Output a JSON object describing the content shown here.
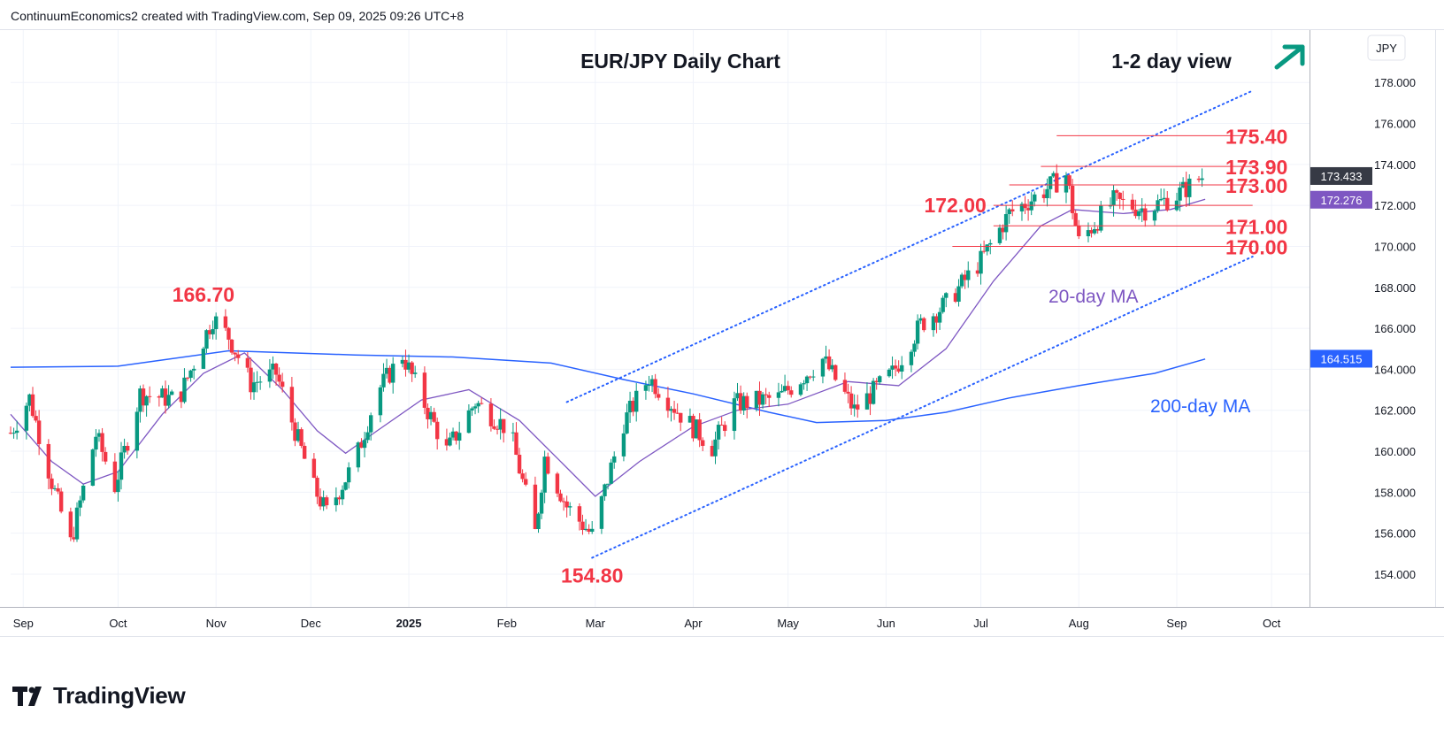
{
  "header": {
    "credit": "ContinuumEconomics2 created with TradingView.com, Sep 09, 2025 09:26 UTC+8"
  },
  "footer": {
    "brand": "TradingView"
  },
  "colors": {
    "up": "#089981",
    "down": "#f23645",
    "ma20": "#7e57c2",
    "ma200": "#2962ff",
    "level": "#f23645",
    "arrow": "#089981",
    "channel": "#2962ff",
    "price_badge": "#363a45",
    "ma20_badge": "#7e57c2",
    "ma200_badge": "#2962ff"
  },
  "chart_data": {
    "type": "candlestick",
    "title": "EUR/JPY Daily Chart",
    "view_label": "1-2 day view",
    "currency": "JPY",
    "x_ticks": [
      "Sep",
      "Oct",
      "Nov",
      "Dec",
      "2025",
      "Feb",
      "Mar",
      "Apr",
      "May",
      "Jun",
      "Jul",
      "Aug",
      "Sep",
      "Oct"
    ],
    "y_ticks": [
      "154.000",
      "156.000",
      "158.000",
      "160.000",
      "162.000",
      "164.000",
      "166.000",
      "168.000",
      "170.000",
      "172.000",
      "174.000",
      "176.000",
      "178.000"
    ],
    "ylim": [
      152.4,
      180.6
    ],
    "grid": true,
    "last_price": "173.433",
    "ma20_value": "172.276",
    "ma200_value": "164.515",
    "ma20_label": "20-day MA",
    "ma200_label": "200-day MA",
    "levels": [
      {
        "label": "175.40",
        "value": 175.4,
        "from": "2025-07-25",
        "to": "2025-09-25",
        "label_side": "right"
      },
      {
        "label": "173.90",
        "value": 173.9,
        "from": "2025-07-20",
        "to": "2025-09-25",
        "label_side": "right"
      },
      {
        "label": "173.00",
        "value": 173.0,
        "from": "2025-07-10",
        "to": "2025-09-25",
        "label_side": "right"
      },
      {
        "label": "172.00",
        "value": 172.0,
        "from": "2025-07-05",
        "to": "2025-09-25",
        "label_side": "left"
      },
      {
        "label": "171.00",
        "value": 171.0,
        "from": "2025-07-05",
        "to": "2025-09-25",
        "label_side": "right"
      },
      {
        "label": "170.00",
        "value": 170.0,
        "from": "2025-06-22",
        "to": "2025-09-25",
        "label_side": "right"
      }
    ],
    "point_labels": [
      {
        "label": "166.70",
        "date": "2024-10-28",
        "value": 166.7,
        "position": "above"
      },
      {
        "label": "154.80",
        "date": "2025-02-28",
        "value": 154.8,
        "position": "below"
      }
    ],
    "channel": {
      "upper": [
        {
          "date": "2025-02-20",
          "value": 162.4
        },
        {
          "date": "2025-09-25",
          "value": 177.6
        }
      ],
      "lower": [
        {
          "date": "2025-02-28",
          "value": 154.8
        },
        {
          "date": "2025-09-25",
          "value": 169.5
        }
      ]
    },
    "ma200": [
      {
        "date": "2024-08-28",
        "value": 164.1
      },
      {
        "date": "2024-10-01",
        "value": 164.15
      },
      {
        "date": "2024-11-05",
        "value": 164.9
      },
      {
        "date": "2024-12-15",
        "value": 164.7
      },
      {
        "date": "2025-01-15",
        "value": 164.6
      },
      {
        "date": "2025-02-15",
        "value": 164.3
      },
      {
        "date": "2025-03-10",
        "value": 163.5
      },
      {
        "date": "2025-04-01",
        "value": 162.8
      },
      {
        "date": "2025-04-25",
        "value": 161.9
      },
      {
        "date": "2025-05-10",
        "value": 161.4
      },
      {
        "date": "2025-06-01",
        "value": 161.5
      },
      {
        "date": "2025-06-20",
        "value": 161.9
      },
      {
        "date": "2025-07-10",
        "value": 162.6
      },
      {
        "date": "2025-08-01",
        "value": 163.2
      },
      {
        "date": "2025-08-25",
        "value": 163.8
      },
      {
        "date": "2025-09-10",
        "value": 164.5
      }
    ],
    "ma20": [
      {
        "date": "2024-08-28",
        "value": 161.8
      },
      {
        "date": "2024-09-10",
        "value": 159.5
      },
      {
        "date": "2024-09-20",
        "value": 158.4
      },
      {
        "date": "2024-10-01",
        "value": 159.0
      },
      {
        "date": "2024-10-15",
        "value": 161.8
      },
      {
        "date": "2024-10-28",
        "value": 163.8
      },
      {
        "date": "2024-11-10",
        "value": 164.8
      },
      {
        "date": "2024-11-22",
        "value": 163.0
      },
      {
        "date": "2024-12-03",
        "value": 161.0
      },
      {
        "date": "2024-12-12",
        "value": 159.9
      },
      {
        "date": "2024-12-22",
        "value": 161.0
      },
      {
        "date": "2025-01-05",
        "value": 162.5
      },
      {
        "date": "2025-01-20",
        "value": 163.0
      },
      {
        "date": "2025-02-05",
        "value": 161.5
      },
      {
        "date": "2025-02-18",
        "value": 159.5
      },
      {
        "date": "2025-03-01",
        "value": 157.8
      },
      {
        "date": "2025-03-15",
        "value": 159.5
      },
      {
        "date": "2025-04-01",
        "value": 161.2
      },
      {
        "date": "2025-04-15",
        "value": 162.0
      },
      {
        "date": "2025-05-01",
        "value": 162.3
      },
      {
        "date": "2025-05-20",
        "value": 163.4
      },
      {
        "date": "2025-06-05",
        "value": 163.2
      },
      {
        "date": "2025-06-20",
        "value": 165.0
      },
      {
        "date": "2025-07-05",
        "value": 168.3
      },
      {
        "date": "2025-07-20",
        "value": 171.0
      },
      {
        "date": "2025-07-30",
        "value": 171.8
      },
      {
        "date": "2025-08-15",
        "value": 171.6
      },
      {
        "date": "2025-08-30",
        "value": 171.8
      },
      {
        "date": "2025-09-10",
        "value": 172.3
      }
    ],
    "price_path": [
      {
        "date": "2024-08-28",
        "value": 160.9
      },
      {
        "date": "2024-09-03",
        "value": 162.6
      },
      {
        "date": "2024-09-10",
        "value": 158.5
      },
      {
        "date": "2024-09-16",
        "value": 155.5
      },
      {
        "date": "2024-09-24",
        "value": 160.8
      },
      {
        "date": "2024-09-30",
        "value": 158.3
      },
      {
        "date": "2024-10-08",
        "value": 162.8
      },
      {
        "date": "2024-10-20",
        "value": 162.5
      },
      {
        "date": "2024-10-31",
        "value": 166.5
      },
      {
        "date": "2024-11-05",
        "value": 165.6
      },
      {
        "date": "2024-11-12",
        "value": 163.3
      },
      {
        "date": "2024-11-20",
        "value": 163.8
      },
      {
        "date": "2024-12-02",
        "value": 158.2
      },
      {
        "date": "2024-12-06",
        "value": 157.0
      },
      {
        "date": "2024-12-15",
        "value": 159.5
      },
      {
        "date": "2024-12-22",
        "value": 162.9
      },
      {
        "date": "2024-12-30",
        "value": 164.7
      },
      {
        "date": "2025-01-06",
        "value": 162.3
      },
      {
        "date": "2025-01-13",
        "value": 160.0
      },
      {
        "date": "2025-01-22",
        "value": 162.4
      },
      {
        "date": "2025-02-02",
        "value": 161.0
      },
      {
        "date": "2025-02-10",
        "value": 156.0
      },
      {
        "date": "2025-02-13",
        "value": 159.7
      },
      {
        "date": "2025-02-20",
        "value": 157.3
      },
      {
        "date": "2025-02-28",
        "value": 155.9
      },
      {
        "date": "2025-03-10",
        "value": 161.4
      },
      {
        "date": "2025-03-18",
        "value": 163.6
      },
      {
        "date": "2025-03-28",
        "value": 161.8
      },
      {
        "date": "2025-04-07",
        "value": 160.2
      },
      {
        "date": "2025-04-14",
        "value": 162.3
      },
      {
        "date": "2025-04-28",
        "value": 162.6
      },
      {
        "date": "2025-05-12",
        "value": 164.5
      },
      {
        "date": "2025-05-22",
        "value": 162.0
      },
      {
        "date": "2025-06-03",
        "value": 163.8
      },
      {
        "date": "2025-06-12",
        "value": 166.2
      },
      {
        "date": "2025-06-20",
        "value": 167.2
      },
      {
        "date": "2025-07-01",
        "value": 169.3
      },
      {
        "date": "2025-07-10",
        "value": 171.6
      },
      {
        "date": "2025-07-20",
        "value": 172.6
      },
      {
        "date": "2025-07-28",
        "value": 173.5
      },
      {
        "date": "2025-08-01",
        "value": 170.2
      },
      {
        "date": "2025-08-12",
        "value": 172.2
      },
      {
        "date": "2025-08-22",
        "value": 171.8
      },
      {
        "date": "2025-09-01",
        "value": 172.5
      },
      {
        "date": "2025-09-09",
        "value": 173.4
      }
    ],
    "date_range": {
      "start": "2024-08-28",
      "end": "2025-09-09"
    }
  }
}
